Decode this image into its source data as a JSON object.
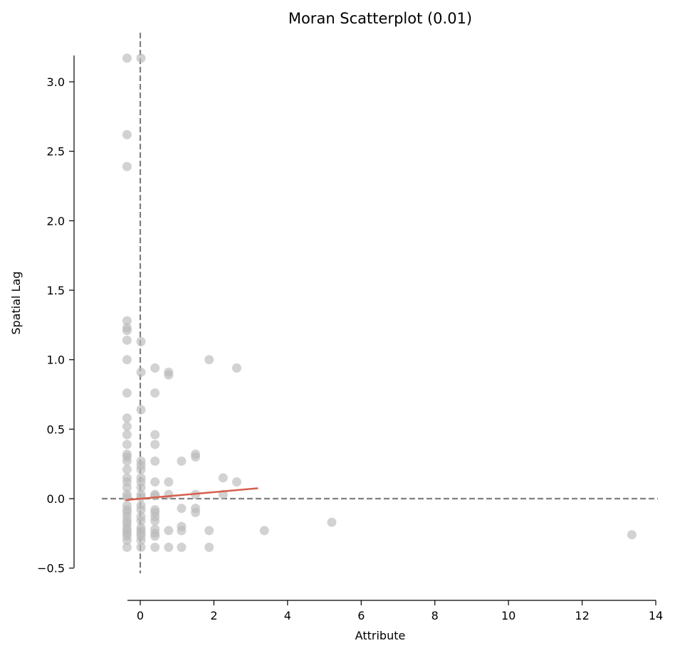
{
  "chart_data": {
    "type": "scatter",
    "title": "Moran Scatterplot (0.01)",
    "xlabel": "Attribute",
    "ylabel": "Spatial Lag",
    "xlim": [
      -1.0,
      14.0
    ],
    "ylim": [
      -0.5,
      3.2
    ],
    "xticks": [
      0,
      2,
      4,
      6,
      8,
      10,
      12,
      14
    ],
    "yticks": [
      -0.5,
      0.0,
      0.5,
      1.0,
      1.5,
      2.0,
      2.5,
      3.0
    ],
    "xtick_labels": [
      "0",
      "2",
      "4",
      "6",
      "8",
      "10",
      "12",
      "14"
    ],
    "ytick_labels": [
      "−0.5",
      "0.0",
      "0.5",
      "1.0",
      "1.5",
      "2.0",
      "2.5",
      "3.0"
    ],
    "grid": false,
    "reference_lines": {
      "x": 0,
      "y": 0,
      "style": "dashed"
    },
    "point_color": "#bababa",
    "fit_color": "#d6604d",
    "ref_line_color": "#808080",
    "fit_line": {
      "x": [
        -0.4,
        3.2
      ],
      "y": [
        -0.01,
        0.075
      ]
    },
    "points": [
      [
        -0.36,
        3.17
      ],
      [
        0.02,
        3.17
      ],
      [
        -0.36,
        2.62
      ],
      [
        -0.36,
        2.39
      ],
      [
        -0.36,
        1.28
      ],
      [
        -0.36,
        1.23
      ],
      [
        -0.36,
        1.21
      ],
      [
        -0.36,
        1.14
      ],
      [
        0.02,
        1.13
      ],
      [
        -0.36,
        1.0
      ],
      [
        -0.36,
        0.76
      ],
      [
        0.02,
        0.91
      ],
      [
        0.4,
        0.94
      ],
      [
        0.4,
        0.76
      ],
      [
        0.77,
        0.91
      ],
      [
        0.77,
        0.89
      ],
      [
        1.87,
        1.0
      ],
      [
        2.62,
        0.94
      ],
      [
        0.02,
        0.64
      ],
      [
        -0.36,
        0.58
      ],
      [
        -0.36,
        0.52
      ],
      [
        -0.36,
        0.46
      ],
      [
        0.4,
        0.46
      ],
      [
        0.4,
        0.39
      ],
      [
        -0.36,
        0.39
      ],
      [
        -0.36,
        0.32
      ],
      [
        -0.36,
        0.3
      ],
      [
        -0.36,
        0.27
      ],
      [
        0.02,
        0.27
      ],
      [
        0.02,
        0.24
      ],
      [
        0.4,
        0.27
      ],
      [
        1.12,
        0.27
      ],
      [
        1.5,
        0.32
      ],
      [
        1.5,
        0.3
      ],
      [
        -0.36,
        0.21
      ],
      [
        0.02,
        0.21
      ],
      [
        -0.36,
        0.15
      ],
      [
        -0.36,
        0.12
      ],
      [
        0.02,
        0.15
      ],
      [
        0.02,
        0.12
      ],
      [
        0.4,
        0.12
      ],
      [
        0.77,
        0.12
      ],
      [
        2.25,
        0.15
      ],
      [
        2.62,
        0.12
      ],
      [
        -0.36,
        0.08
      ],
      [
        0.02,
        0.08
      ],
      [
        -0.36,
        0.03
      ],
      [
        -0.36,
        0.01
      ],
      [
        0.02,
        0.03
      ],
      [
        0.02,
        0.01
      ],
      [
        0.4,
        0.03
      ],
      [
        0.4,
        0.02
      ],
      [
        0.77,
        0.03
      ],
      [
        1.5,
        0.03
      ],
      [
        2.25,
        0.03
      ],
      [
        -0.36,
        -0.05
      ],
      [
        -0.36,
        -0.08
      ],
      [
        -0.36,
        -0.1
      ],
      [
        0.02,
        -0.05
      ],
      [
        0.02,
        -0.08
      ],
      [
        0.4,
        -0.08
      ],
      [
        0.4,
        -0.1
      ],
      [
        1.12,
        -0.07
      ],
      [
        1.5,
        -0.07
      ],
      [
        1.5,
        -0.1
      ],
      [
        -0.36,
        -0.13
      ],
      [
        -0.36,
        -0.16
      ],
      [
        -0.36,
        -0.18
      ],
      [
        0.02,
        -0.13
      ],
      [
        0.02,
        -0.16
      ],
      [
        0.4,
        -0.13
      ],
      [
        0.4,
        -0.16
      ],
      [
        -0.36,
        -0.21
      ],
      [
        -0.36,
        -0.23
      ],
      [
        -0.36,
        -0.25
      ],
      [
        -0.36,
        -0.27
      ],
      [
        0.02,
        -0.21
      ],
      [
        0.02,
        -0.23
      ],
      [
        0.02,
        -0.25
      ],
      [
        0.02,
        -0.27
      ],
      [
        0.4,
        -0.22
      ],
      [
        0.4,
        -0.25
      ],
      [
        0.4,
        -0.27
      ],
      [
        0.77,
        -0.23
      ],
      [
        1.12,
        -0.2
      ],
      [
        1.12,
        -0.23
      ],
      [
        1.87,
        -0.23
      ],
      [
        3.37,
        -0.23
      ],
      [
        5.2,
        -0.17
      ],
      [
        13.35,
        -0.26
      ],
      [
        -0.36,
        -0.35
      ],
      [
        0.02,
        -0.35
      ],
      [
        0.4,
        -0.35
      ],
      [
        0.77,
        -0.35
      ],
      [
        1.12,
        -0.35
      ],
      [
        1.87,
        -0.35
      ],
      [
        -0.36,
        -0.3
      ],
      [
        0.02,
        -0.3
      ]
    ]
  }
}
